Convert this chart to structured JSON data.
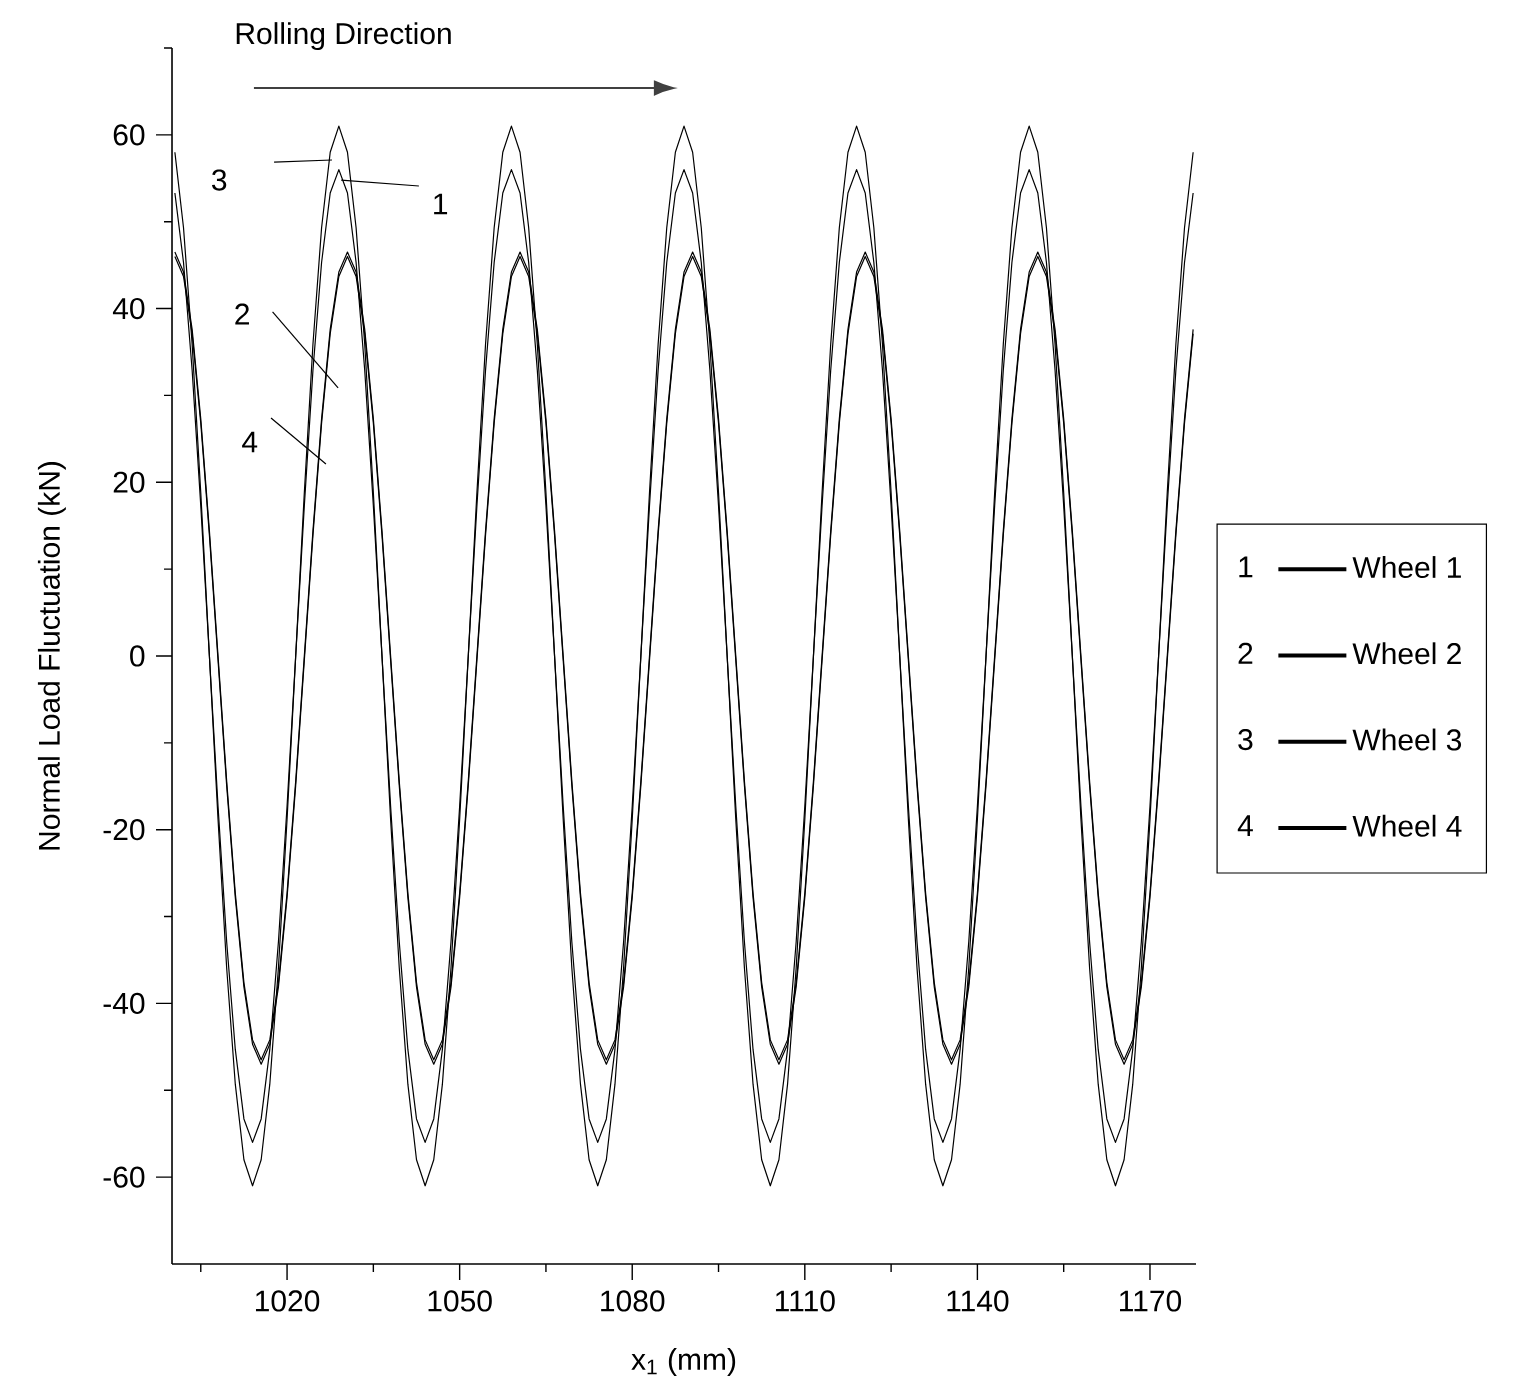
{
  "chart_data": {
    "type": "line",
    "xlabel": "x$_{1}$ (mm)",
    "ylabel": "Normal Load Fluctuation (kN)",
    "xlim": [
      1000,
      1178
    ],
    "ylim": [
      -70,
      70
    ],
    "xticks": [
      {
        "value": 1005,
        "label": null
      },
      1020,
      {
        "value": 1035,
        "label": null
      },
      1050,
      {
        "value": 1065,
        "label": null
      },
      1080,
      {
        "value": 1095,
        "label": null
      },
      1110,
      {
        "value": 1125,
        "label": null
      },
      1140,
      {
        "value": 1155,
        "label": null
      },
      1170
    ],
    "yticks": [
      -60,
      {
        "value": -50,
        "label": null
      },
      -40,
      {
        "value": -30,
        "label": null
      },
      -20,
      {
        "value": -10,
        "label": null
      },
      0,
      {
        "value": 10,
        "label": null
      },
      20,
      {
        "value": 30,
        "label": null
      },
      40,
      {
        "value": 50,
        "label": null
      },
      60,
      {
        "value": 70,
        "label": null
      }
    ],
    "grid": false,
    "legend": "right",
    "marker": "none",
    "line_style": "solid",
    "annotations": [
      "Rolling Direction",
      "3",
      "1",
      "2",
      "4",
      "1",
      "2",
      "3",
      "4"
    ],
    "x": [
      1000.5,
      1002,
      1003.5,
      1005,
      1006.5,
      1008,
      1009.5,
      1011,
      1012.5,
      1014,
      1015.5,
      1017,
      1018.5,
      1020,
      1021.5,
      1023,
      1024.5,
      1026,
      1027.5,
      1029,
      1030.5,
      1032,
      1033.5,
      1035,
      1036.5,
      1038,
      1039.5,
      1041,
      1042.5,
      1044,
      1045.5,
      1047,
      1048.5,
      1050,
      1051.5,
      1053,
      1054.5,
      1056,
      1057.5,
      1059,
      1060.5,
      1062,
      1063.5,
      1065,
      1066.5,
      1068,
      1069.5,
      1071,
      1072.5,
      1074,
      1075.5,
      1077,
      1078.5,
      1080,
      1081.5,
      1083,
      1084.5,
      1086,
      1087.5,
      1089,
      1090.5,
      1092,
      1093.5,
      1095,
      1096.5,
      1098,
      1099.5,
      1101,
      1102.5,
      1104,
      1105.5,
      1107,
      1108.5,
      1110,
      1111.5,
      1113,
      1114.5,
      1116,
      1117.5,
      1119,
      1120.5,
      1122,
      1123.5,
      1125,
      1126.5,
      1128,
      1129.5,
      1131,
      1132.5,
      1134,
      1135.5,
      1137,
      1138.5,
      1140,
      1141.5,
      1143,
      1144.5,
      1146,
      1147.5,
      1149,
      1150.5,
      1152,
      1153.5,
      1155,
      1156.5,
      1158,
      1159.5,
      1161,
      1162.5,
      1164,
      1165.5,
      1167,
      1168.5,
      1170,
      1171.5,
      1173,
      1174.5,
      1176,
      1177.5
    ],
    "series": [
      {
        "name": "Wheel 1",
        "color": "#000000",
        "values": [
          53.3,
          45.3,
          32.9,
          17.3,
          0,
          -17.3,
          -32.9,
          -45.3,
          -53.3,
          -56,
          -53.3,
          -45.3,
          -32.9,
          -17.3,
          0,
          17.3,
          32.9,
          45.3,
          53.3,
          56,
          53.3,
          45.3,
          32.9,
          17.3,
          0,
          -17.3,
          -32.9,
          -45.3,
          -53.3,
          -56,
          -53.3,
          -45.3,
          -32.9,
          -17.3,
          0,
          17.3,
          32.9,
          45.3,
          53.3,
          56,
          53.3,
          45.3,
          32.9,
          17.3,
          0,
          -17.3,
          -32.9,
          -45.3,
          -53.3,
          -56,
          -53.3,
          -45.3,
          -32.9,
          -17.3,
          0,
          17.3,
          32.9,
          45.3,
          53.3,
          56,
          53.3,
          45.3,
          32.9,
          17.3,
          0,
          -17.3,
          -32.9,
          -45.3,
          -53.3,
          -56,
          -53.3,
          -45.3,
          -32.9,
          -17.3,
          0,
          17.3,
          32.9,
          45.3,
          53.3,
          56,
          53.3,
          45.3,
          32.9,
          17.3,
          0,
          -17.3,
          -32.9,
          -45.3,
          -53.3,
          -56,
          -53.3,
          -45.3,
          -32.9,
          -17.3,
          0,
          17.3,
          32.9,
          45.3,
          53.3,
          56,
          53.3,
          45.3,
          32.9,
          17.3,
          0,
          -17.3,
          -32.9,
          -45.3,
          -53.3,
          -56,
          -53.3,
          -45.3,
          -32.9,
          -17.3,
          0,
          17.3,
          32.9,
          45.3,
          53.3
        ]
      },
      {
        "name": "Wheel 2",
        "color": "#000000",
        "values": [
          46.0,
          43.7,
          37.1,
          26.8,
          13.9,
          -0.5,
          -14.9,
          -27.8,
          -38.1,
          -44.7,
          -47.0,
          -44.7,
          -38.1,
          -27.8,
          -14.9,
          -0.5,
          13.9,
          26.8,
          37.1,
          43.7,
          46.0,
          43.7,
          37.1,
          26.8,
          13.9,
          -0.5,
          -14.9,
          -27.8,
          -38.1,
          -44.7,
          -47.0,
          -44.7,
          -38.1,
          -27.8,
          -14.9,
          -0.5,
          13.9,
          26.8,
          37.1,
          43.7,
          46.0,
          43.7,
          37.1,
          26.8,
          13.9,
          -0.5,
          -14.9,
          -27.8,
          -38.1,
          -44.7,
          -47.0,
          -44.7,
          -38.1,
          -27.8,
          -14.9,
          -0.5,
          13.9,
          26.8,
          37.1,
          43.7,
          46.0,
          43.7,
          37.1,
          26.8,
          13.9,
          -0.5,
          -14.9,
          -27.8,
          -38.1,
          -44.7,
          -47.0,
          -44.7,
          -38.1,
          -27.8,
          -14.9,
          -0.5,
          13.9,
          26.8,
          37.1,
          43.7,
          46.0,
          43.7,
          37.1,
          26.8,
          13.9,
          -0.5,
          -14.9,
          -27.8,
          -38.1,
          -44.7,
          -47.0,
          -44.7,
          -38.1,
          -27.8,
          -14.9,
          -0.5,
          13.9,
          26.8,
          37.1,
          43.7,
          46.0,
          43.7,
          37.1,
          26.8,
          13.9,
          -0.5,
          -14.9,
          -27.8,
          -38.1,
          -44.7,
          -47.0,
          -44.7,
          -38.1,
          -27.8,
          -14.9,
          -0.5,
          13.9,
          26.8,
          37.1
        ]
      },
      {
        "name": "Wheel 3",
        "color": "#000000",
        "values": [
          58.0,
          49.3,
          35.9,
          18.8,
          0,
          -18.8,
          -35.9,
          -49.3,
          -58.0,
          -61,
          -58.0,
          -49.3,
          -35.9,
          -18.8,
          0,
          18.8,
          35.9,
          49.3,
          58.0,
          61,
          58.0,
          49.3,
          35.9,
          18.8,
          0,
          -18.8,
          -35.9,
          -49.3,
          -58.0,
          -61,
          -58.0,
          -49.3,
          -35.9,
          -18.8,
          0,
          18.8,
          35.9,
          49.3,
          58.0,
          61,
          58.0,
          49.3,
          35.9,
          18.8,
          0,
          -18.8,
          -35.9,
          -49.3,
          -58.0,
          -61,
          -58.0,
          -49.3,
          -35.9,
          -18.8,
          0,
          18.8,
          35.9,
          49.3,
          58.0,
          61,
          58.0,
          49.3,
          35.9,
          18.8,
          0,
          -18.8,
          -35.9,
          -49.3,
          -58.0,
          -61,
          -58.0,
          -49.3,
          -35.9,
          -18.8,
          0,
          18.8,
          35.9,
          49.3,
          58.0,
          61,
          58.0,
          49.3,
          35.9,
          18.8,
          0,
          -18.8,
          -35.9,
          -49.3,
          -58.0,
          -61,
          -58.0,
          -49.3,
          -35.9,
          -18.8,
          0,
          18.8,
          35.9,
          49.3,
          58.0,
          61,
          58.0,
          49.3,
          35.9,
          18.8,
          0,
          -18.8,
          -35.9,
          -49.3,
          -58.0,
          -61,
          -58.0,
          -49.3,
          -35.9,
          -18.8,
          0,
          18.8,
          35.9,
          49.3,
          58.0
        ]
      },
      {
        "name": "Wheel 4",
        "color": "#000000",
        "values": [
          46.5,
          44.2,
          37.6,
          27.3,
          14.4,
          0,
          -14.4,
          -27.3,
          -37.6,
          -44.2,
          -46.5,
          -44.2,
          -37.6,
          -27.3,
          -14.4,
          0,
          14.4,
          27.3,
          37.6,
          44.2,
          46.5,
          44.2,
          37.6,
          27.3,
          14.4,
          0,
          -14.4,
          -27.3,
          -37.6,
          -44.2,
          -46.5,
          -44.2,
          -37.6,
          -27.3,
          -14.4,
          0,
          14.4,
          27.3,
          37.6,
          44.2,
          46.5,
          44.2,
          37.6,
          27.3,
          14.4,
          0,
          -14.4,
          -27.3,
          -37.6,
          -44.2,
          -46.5,
          -44.2,
          -37.6,
          -27.3,
          -14.4,
          0,
          14.4,
          27.3,
          37.6,
          44.2,
          46.5,
          44.2,
          37.6,
          27.3,
          14.4,
          0,
          -14.4,
          -27.3,
          -37.6,
          -44.2,
          -46.5,
          -44.2,
          -37.6,
          -27.3,
          -14.4,
          0,
          14.4,
          27.3,
          37.6,
          44.2,
          46.5,
          44.2,
          37.6,
          27.3,
          14.4,
          0,
          -14.4,
          -27.3,
          -37.6,
          -44.2,
          -46.5,
          -44.2,
          -37.6,
          -27.3,
          -14.4,
          0,
          14.4,
          27.3,
          37.6,
          44.2,
          46.5,
          44.2,
          37.6,
          27.3,
          14.4,
          0,
          -14.4,
          -27.3,
          -37.6,
          -44.2,
          -46.5,
          -44.2,
          -37.6,
          -27.3,
          -14.4,
          0,
          14.4,
          27.3,
          37.6
        ]
      }
    ]
  }
}
